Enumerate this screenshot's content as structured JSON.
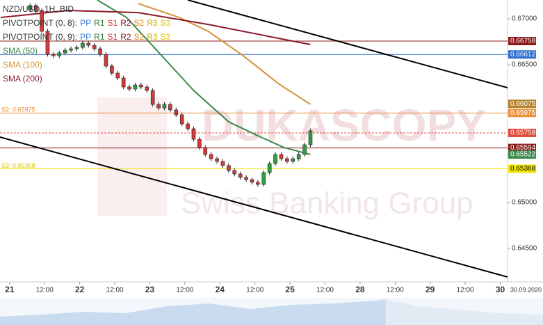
{
  "chart_data": {
    "type": "candlestick",
    "title": "NZD/USD, 1H, BID",
    "watermark": [
      "DUKASCOPY",
      "Swiss Banking Group"
    ],
    "date_label": "30.09.2020",
    "indicators": [
      {
        "label": "PIVOTPOINT (0, 8):",
        "levels": [
          "PP",
          "R1",
          "S1",
          "R2",
          "S2",
          "R3",
          "S3"
        ]
      },
      {
        "label": "PIVOTPOINT (0, 9):",
        "levels": [
          "PP",
          "R1",
          "S1",
          "R2",
          "S2",
          "R3",
          "S3"
        ]
      }
    ],
    "level_colors": [
      "#3a7bd5",
      "#2f7d3a",
      "#c0392b",
      "#8b1a2b",
      "#d98b1e",
      "#c9b000",
      "#e0c800"
    ],
    "up_color": "#2e9e3e",
    "down_color": "#d23b3b",
    "x": [
      7,
      9,
      11,
      13,
      15,
      17,
      19,
      21,
      23,
      25,
      27,
      29,
      31,
      33,
      35,
      37,
      39,
      41,
      43,
      45,
      47,
      49,
      51,
      53,
      55,
      57,
      59,
      61,
      63,
      65,
      67,
      69,
      71,
      73,
      75,
      77,
      79,
      81,
      83,
      85,
      87,
      89,
      91,
      93,
      95,
      97,
      99,
      101,
      103
    ],
    "open": [
      0.671,
      0.67144,
      0.67091,
      0.66864,
      0.66614,
      0.66598,
      0.66629,
      0.66659,
      0.66674,
      0.66689,
      0.66735,
      0.66712,
      0.66674,
      0.66614,
      0.66485,
      0.66409,
      0.66356,
      0.66258,
      0.66235,
      0.6628,
      0.66258,
      0.6622,
      0.66068,
      0.6603,
      0.66068,
      0.66008,
      0.65955,
      0.65856,
      0.65803,
      0.65689,
      0.65598,
      0.65523,
      0.65477,
      0.65447,
      0.65402,
      0.65348,
      0.65311,
      0.65273,
      0.6525,
      0.6522,
      0.65197,
      0.65326,
      0.65424,
      0.65523,
      0.65477,
      0.65447,
      0.65477,
      0.65523,
      0.65629
    ],
    "high": [
      0.67169,
      0.67169,
      0.67116,
      0.66889,
      0.66639,
      0.66654,
      0.66684,
      0.66699,
      0.66714,
      0.6676,
      0.6676,
      0.66737,
      0.66699,
      0.66639,
      0.6651,
      0.66434,
      0.66381,
      0.66283,
      0.66305,
      0.66305,
      0.66283,
      0.66245,
      0.66093,
      0.66093,
      0.66093,
      0.66033,
      0.6598,
      0.65881,
      0.65828,
      0.65714,
      0.65623,
      0.65548,
      0.65502,
      0.65472,
      0.65427,
      0.65373,
      0.65336,
      0.65298,
      0.65275,
      0.65245,
      0.65351,
      0.65449,
      0.65548,
      0.65548,
      0.65502,
      0.65502,
      0.65548,
      0.65654,
      0.65805
    ],
    "low": [
      0.67075,
      0.67066,
      0.66839,
      0.66589,
      0.66573,
      0.66573,
      0.66604,
      0.66634,
      0.66649,
      0.66664,
      0.66687,
      0.66649,
      0.66589,
      0.6646,
      0.66384,
      0.66331,
      0.66233,
      0.6621,
      0.6621,
      0.66233,
      0.66195,
      0.66043,
      0.66005,
      0.66005,
      0.65983,
      0.6593,
      0.65831,
      0.65778,
      0.65664,
      0.65573,
      0.65498,
      0.65452,
      0.65422,
      0.65377,
      0.65323,
      0.65286,
      0.65248,
      0.65225,
      0.65195,
      0.65172,
      0.65172,
      0.65301,
      0.65399,
      0.65452,
      0.65422,
      0.65422,
      0.65452,
      0.65498,
      0.65604
    ],
    "close": [
      0.67144,
      0.67091,
      0.66864,
      0.66614,
      0.66598,
      0.66629,
      0.66659,
      0.66674,
      0.66689,
      0.66735,
      0.66712,
      0.66674,
      0.66614,
      0.66485,
      0.66409,
      0.66356,
      0.66258,
      0.66235,
      0.6628,
      0.66258,
      0.6622,
      0.66068,
      0.6603,
      0.66068,
      0.66008,
      0.65955,
      0.65856,
      0.65803,
      0.65689,
      0.65598,
      0.65523,
      0.65477,
      0.65447,
      0.65402,
      0.65348,
      0.65311,
      0.65273,
      0.6525,
      0.6522,
      0.65197,
      0.65326,
      0.65424,
      0.65523,
      0.65477,
      0.65447,
      0.65477,
      0.65523,
      0.65629,
      0.6578
    ],
    "series": [
      {
        "name": "SMA (50)",
        "color": "#3a8a4a",
        "x": [
          30,
          40,
          51,
          63,
          75,
          85,
          94,
          103
        ],
        "values": [
          0.67205,
          0.67015,
          0.66636,
          0.6622,
          0.65879,
          0.65727,
          0.65598,
          0.65523
        ]
      },
      {
        "name": "SMA (100)",
        "color": "#d4923a",
        "x": [
          44,
          58,
          68,
          80,
          92,
          103
        ],
        "values": [
          0.67167,
          0.67015,
          0.66864,
          0.66598,
          0.66295,
          0.66068
        ]
      },
      {
        "name": "SMA (200)",
        "color": "#8b1a2b",
        "x": [
          -3,
          20,
          44,
          68,
          92,
          103
        ],
        "values": [
          0.67015,
          0.67091,
          0.67068,
          0.66939,
          0.66788,
          0.6672
        ]
      }
    ],
    "trendlines": [
      {
        "color": "#000000",
        "x": [
          61,
          170.5
        ],
        "values": [
          0.67205,
          0.6625
        ]
      },
      {
        "color": "#000000",
        "x": [
          -3.3,
          170.5
        ],
        "values": [
          0.65712,
          0.64189
        ]
      }
    ],
    "levels": [
      {
        "value": 0.66758,
        "color": "#8b1a1a",
        "text_color": "#ffffff",
        "line": true,
        "dash": false
      },
      {
        "value": 0.66612,
        "color": "#2f6fd0",
        "text_color": "#ffffff",
        "line": true,
        "dash": false
      },
      {
        "value": 0.66075,
        "color": "#b5822e",
        "text_color": "#ffffff",
        "line": false,
        "dash": false
      },
      {
        "value": 0.65975,
        "color": "#e8913a",
        "text_color": "#ffffff",
        "line": true,
        "dash": false
      },
      {
        "value": 0.65758,
        "color": "#e04a3a",
        "text_color": "#ffffff",
        "line": true,
        "dash": true
      },
      {
        "value": 0.65594,
        "color": "#8b1a1a",
        "text_color": "#ffffff",
        "line": true,
        "dash": false
      },
      {
        "value": 0.65522,
        "color": "#3a8a4a",
        "text_color": "#ffffff",
        "line": false,
        "dash": false
      },
      {
        "value": 0.65368,
        "color": "#f2e600",
        "text_color": "#000000",
        "line": true,
        "dash": false
      }
    ],
    "level_annotations": [
      {
        "text": "S2: 0.65975",
        "value": 0.65975,
        "color": "#e8913a"
      },
      {
        "text": "S3: 0.65368",
        "value": 0.65368,
        "color": "#d4c400"
      }
    ],
    "xlim": [
      -3.3,
      170.5
    ],
    "ylim": [
      0.64136,
      0.67205
    ],
    "xticks": [
      {
        "value": 0,
        "label": "21"
      },
      {
        "value": 12,
        "label": "12:00"
      },
      {
        "value": 24,
        "label": "22"
      },
      {
        "value": 36,
        "label": "12:00"
      },
      {
        "value": 48,
        "label": "23"
      },
      {
        "value": 60,
        "label": "12:00"
      },
      {
        "value": 72,
        "label": "24"
      },
      {
        "value": 84,
        "label": "12:00"
      },
      {
        "value": 96,
        "label": "25"
      },
      {
        "value": 108,
        "label": "12:00"
      },
      {
        "value": 120,
        "label": "28"
      },
      {
        "value": 132,
        "label": "12:00"
      },
      {
        "value": 144,
        "label": "29"
      },
      {
        "value": 156,
        "label": "12:00"
      },
      {
        "value": 168,
        "label": "30"
      }
    ],
    "yticks": [
      {
        "value": 0.67,
        "label": "0.67000"
      },
      {
        "value": 0.665,
        "label": "0.66500"
      },
      {
        "value": 0.65,
        "label": "0.65000"
      },
      {
        "value": 0.645,
        "label": "0.64500"
      }
    ]
  }
}
